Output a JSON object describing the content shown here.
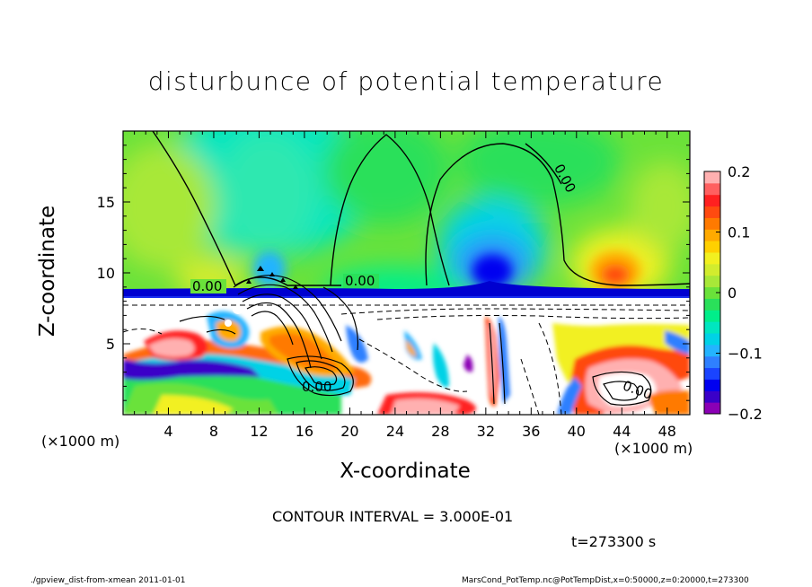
{
  "chart_data": {
    "type": "heatmap",
    "title": "disturbunce of potential temperature",
    "xlabel": "X-coordinate",
    "ylabel": "Z-coordinate",
    "x_unit_left": "(×1000 m)",
    "x_unit_right": "(×1000 m)",
    "xlim": [
      0,
      50
    ],
    "ylim": [
      0,
      20
    ],
    "x_ticks": [
      4,
      8,
      12,
      16,
      20,
      24,
      28,
      32,
      36,
      40,
      44,
      48
    ],
    "y_ticks": [
      5,
      10,
      15
    ],
    "colorbar": {
      "ticks": [
        0.2,
        0.1,
        0,
        -0.1,
        -0.2
      ],
      "tick_labels": [
        "0.2",
        "0.1",
        "0",
        "−0.1",
        "−0.2"
      ],
      "range": [
        -0.2,
        0.2
      ],
      "colors": [
        "#8b00b5",
        "#3a00c8",
        "#0000f0",
        "#1a44ff",
        "#2f80ff",
        "#24b4ff",
        "#00d2e6",
        "#00e6c0",
        "#00ee8a",
        "#2ae05a",
        "#6ae23a",
        "#a8e838",
        "#d2ec2e",
        "#f2f020",
        "#ffd000",
        "#ffaa00",
        "#ff7a00",
        "#ff4a10",
        "#ff2020",
        "#ff6060",
        "#ffb0b0"
      ]
    },
    "contour_labels": [
      "0.00",
      "0.00",
      "0.00",
      "0.00",
      "0.00"
    ],
    "contour_interval_text": "CONTOUR INTERVAL = 3.000E-01",
    "time_text": "t=273300 s",
    "footer_left": "./gpview_dist-from-xmean   2011-01-01",
    "footer_right": "MarsCond_PotTemp.nc@PotTempDist,x=0:50000,z=0:20000,t=273300"
  }
}
